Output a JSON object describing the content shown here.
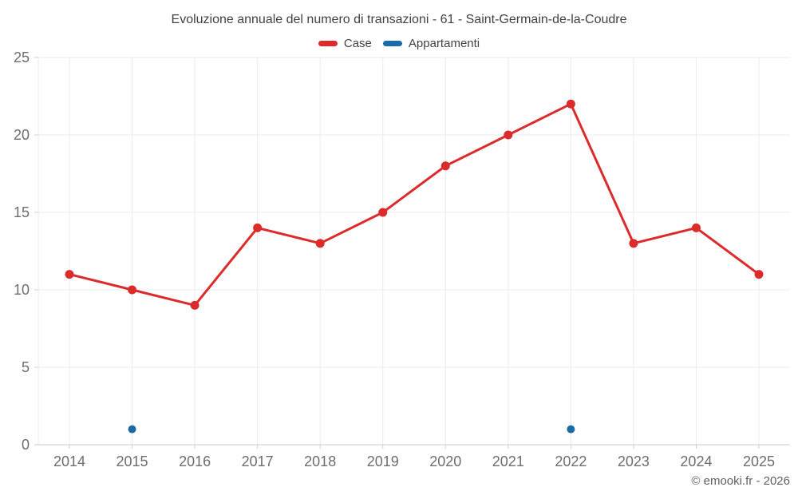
{
  "title": "Evoluzione annuale del numero di transazioni - 61 - Saint-Germain-de-la-Coudre",
  "footer": "© emooki.fr - 2026",
  "legend": {
    "items": [
      {
        "label": "Case",
        "color": "#dc2b2b"
      },
      {
        "label": "Appartamenti",
        "color": "#1a6ca8"
      }
    ]
  },
  "chart_data": {
    "type": "line",
    "title": "Evoluzione annuale del numero di transazioni - 61 - Saint-Germain-de-la-Coudre",
    "categories": [
      "2014",
      "2015",
      "2016",
      "2017",
      "2018",
      "2019",
      "2020",
      "2021",
      "2022",
      "2023",
      "2024",
      "2025"
    ],
    "series": [
      {
        "name": "Case",
        "mode": "line+markers",
        "color": "#dc2b2b",
        "values": [
          11,
          10,
          9,
          14,
          13,
          15,
          18,
          20,
          22,
          13,
          14,
          11
        ]
      },
      {
        "name": "Appartamenti",
        "mode": "markers",
        "color": "#1a6ca8",
        "values": [
          null,
          1,
          null,
          null,
          null,
          null,
          null,
          null,
          1,
          null,
          null,
          null
        ]
      }
    ],
    "xlabel": "",
    "ylabel": "",
    "ylim": [
      0,
      25
    ],
    "yticks": [
      0,
      5,
      10,
      15,
      20,
      25
    ],
    "grid": true,
    "legend_position": "top"
  }
}
